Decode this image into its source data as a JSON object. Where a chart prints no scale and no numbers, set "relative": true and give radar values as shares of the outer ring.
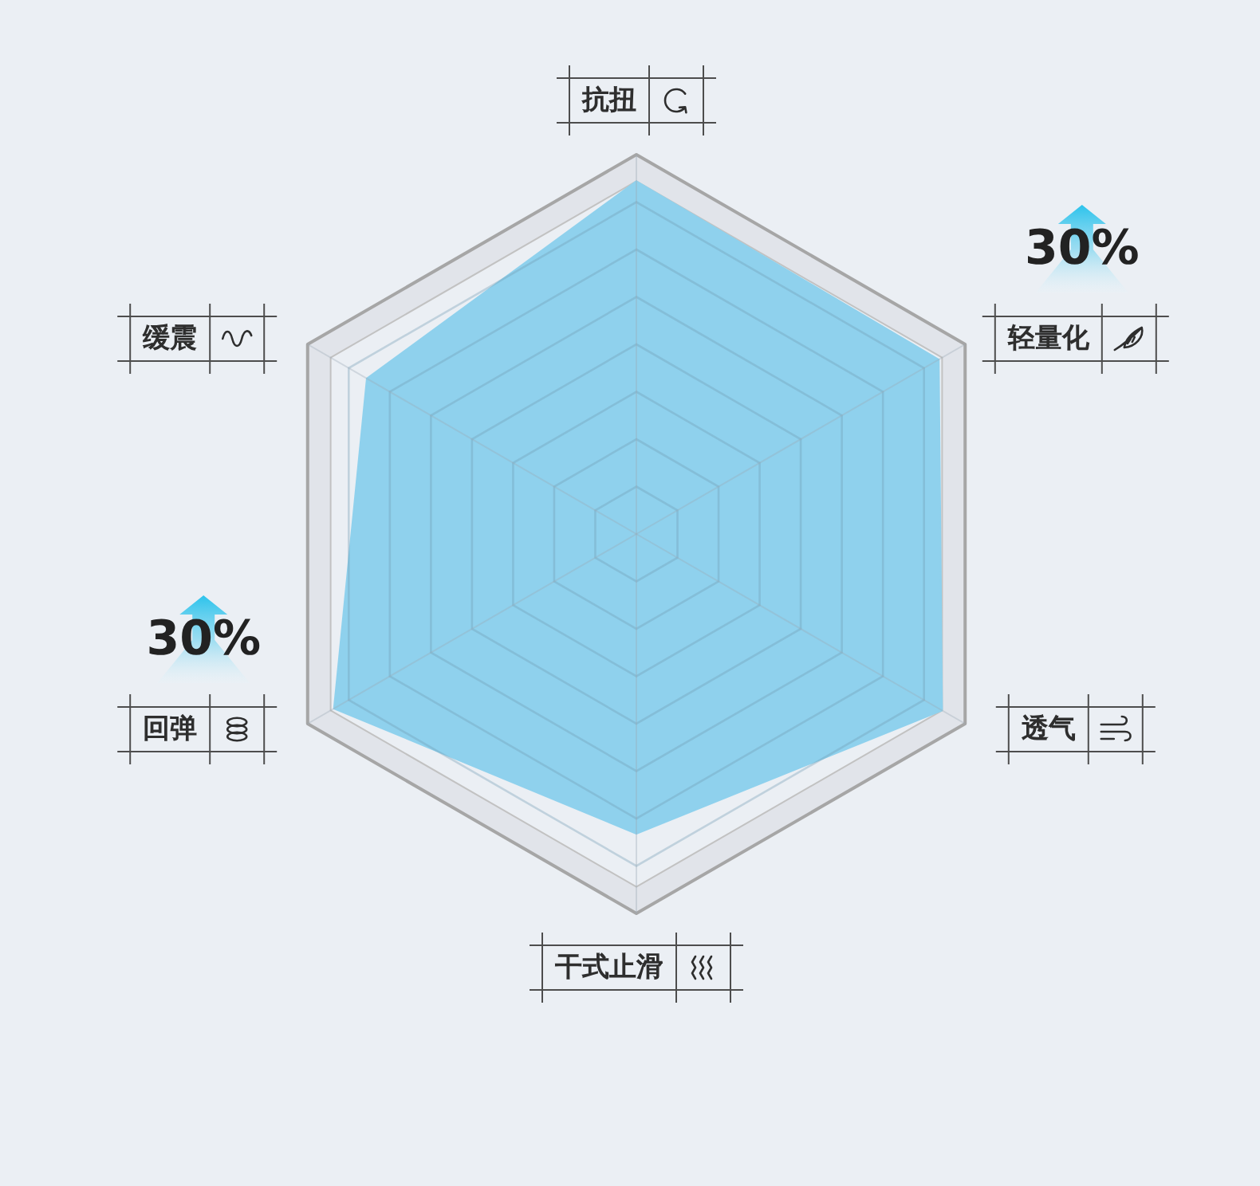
{
  "chart_data": {
    "type": "radar",
    "relative": true,
    "grid": true,
    "categories": [
      "抗扭",
      "轻量化",
      "透气",
      "干式止滑",
      "回弹",
      "缓震"
    ],
    "series": [
      {
        "color": "#8fd1ed",
        "values": [
          0.93,
          0.92,
          0.93,
          0.79,
          0.92,
          0.82
        ]
      }
    ],
    "annotations": [
      {
        "text": "30%",
        "x": "轻量化"
      },
      {
        "text": "30%",
        "x": "回弹"
      }
    ]
  }
}
